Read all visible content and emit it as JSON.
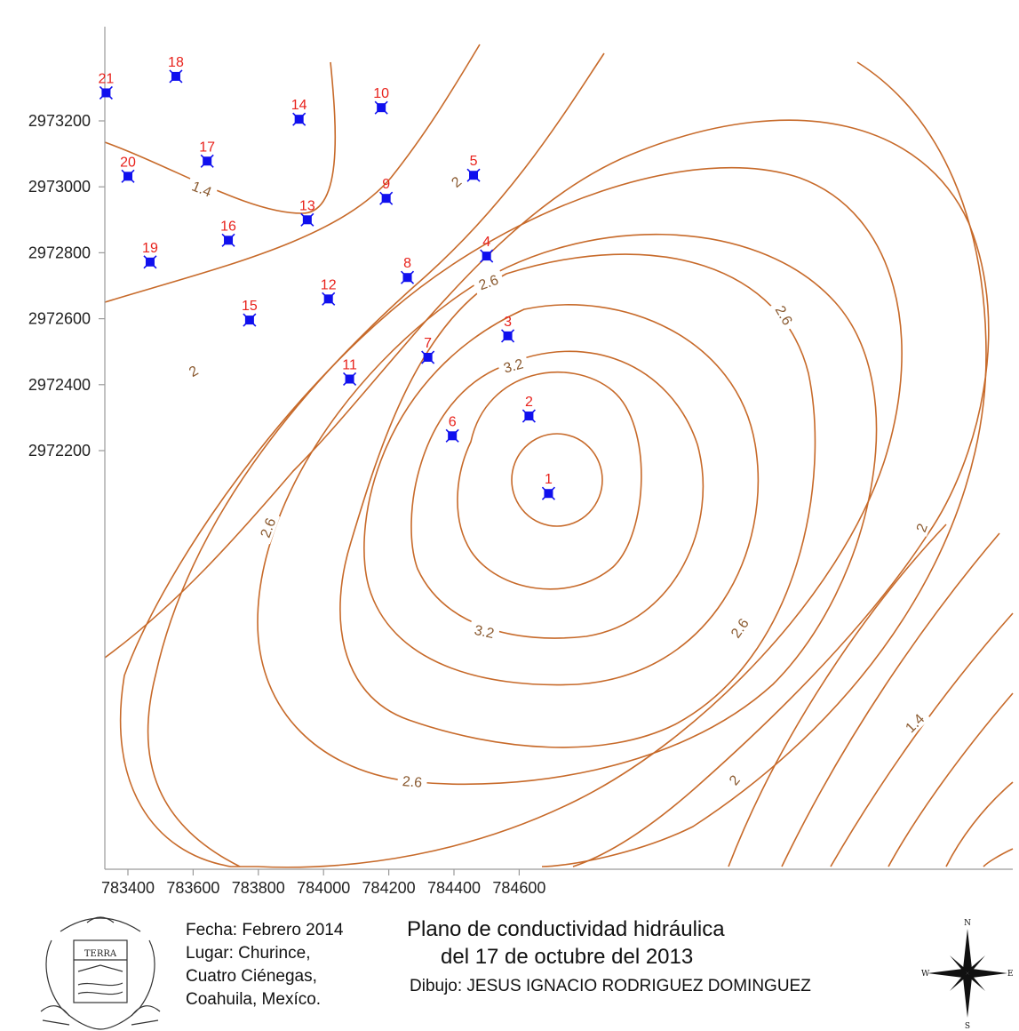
{
  "map": {
    "x_ticks": [
      "783400",
      "783600",
      "783800",
      "784000",
      "784200",
      "784400",
      "784600"
    ],
    "y_ticks": [
      "2973200",
      "2973000",
      "2972800",
      "2972600",
      "2972400",
      "2972200"
    ],
    "contour_labels": [
      "1.4",
      "2",
      "2.6",
      "3.2"
    ],
    "contour_color": "#c76a2a",
    "well_color": "#1010ee",
    "well_label_color": "#e8221c",
    "wells": [
      {
        "id": "1",
        "x": 784690,
        "y": 2972070
      },
      {
        "id": "2",
        "x": 784630,
        "y": 2972305
      },
      {
        "id": "3",
        "x": 784565,
        "y": 2972548
      },
      {
        "id": "4",
        "x": 784500,
        "y": 2972790
      },
      {
        "id": "5",
        "x": 784460,
        "y": 2973035
      },
      {
        "id": "6",
        "x": 784395,
        "y": 2972245
      },
      {
        "id": "7",
        "x": 784320,
        "y": 2972483
      },
      {
        "id": "8",
        "x": 784257,
        "y": 2972725
      },
      {
        "id": "9",
        "x": 784192,
        "y": 2972965
      },
      {
        "id": "10",
        "x": 784177,
        "y": 2973240
      },
      {
        "id": "11",
        "x": 784080,
        "y": 2972417
      },
      {
        "id": "12",
        "x": 784015,
        "y": 2972660
      },
      {
        "id": "13",
        "x": 783950,
        "y": 2972900
      },
      {
        "id": "14",
        "x": 783925,
        "y": 2973205
      },
      {
        "id": "15",
        "x": 783773,
        "y": 2972596
      },
      {
        "id": "16",
        "x": 783708,
        "y": 2972838
      },
      {
        "id": "17",
        "x": 783643,
        "y": 2973078
      },
      {
        "id": "18",
        "x": 783547,
        "y": 2973335
      },
      {
        "id": "19",
        "x": 783468,
        "y": 2972772
      },
      {
        "id": "20",
        "x": 783400,
        "y": 2973032
      },
      {
        "id": "21",
        "x": 783333,
        "y": 2973285
      }
    ]
  },
  "info": {
    "date": "Fecha: Febrero 2014",
    "place_line1": "Lugar: Churince,",
    "place_line2": "Cuatro Ciénegas,",
    "place_line3": "Coahuila, Mexíco."
  },
  "title": {
    "line1": "Plano de conductividad hidráulica",
    "line2": "del 17 de octubre del 2013"
  },
  "author": "Dibujo: JESUS IGNACIO RODRIGUEZ DOMINGUEZ",
  "seal": {
    "text": "TERRA"
  },
  "compass": {
    "north": "N",
    "south": "S",
    "east": "E",
    "west": "W"
  }
}
